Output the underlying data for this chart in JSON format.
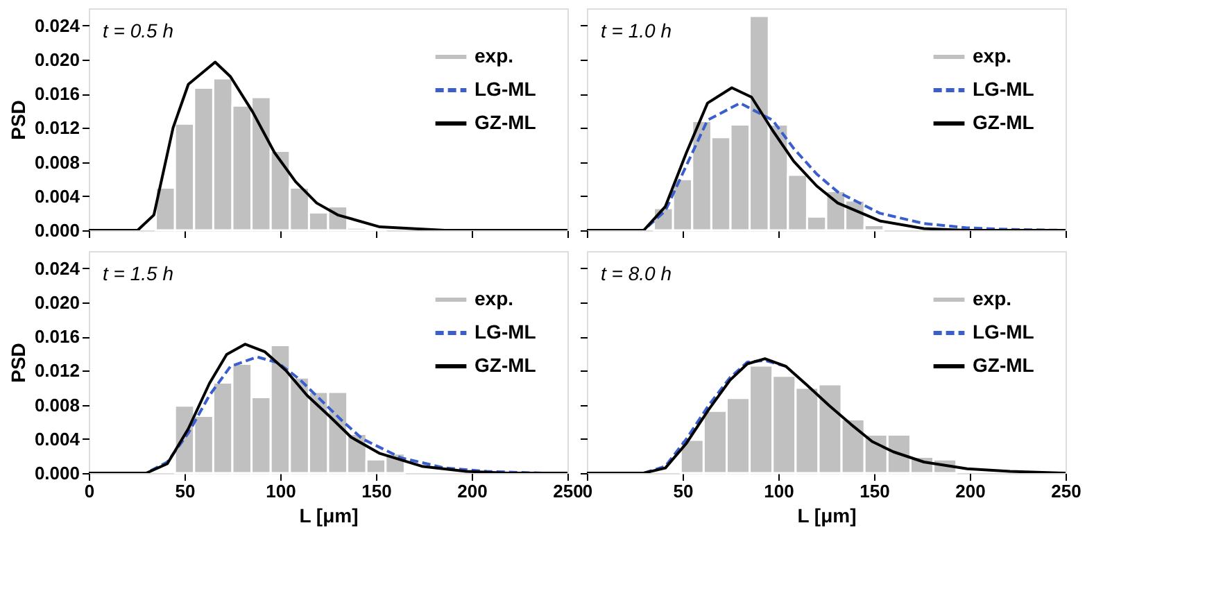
{
  "chart_data": [
    {
      "type": "histogram",
      "ylabel": "PSD",
      "annotations": [
        "t = 0.5 h"
      ],
      "xlim": [
        0,
        250
      ],
      "ylim": [
        0,
        0.026
      ],
      "xticks": [
        0,
        50,
        100,
        150,
        200,
        250
      ],
      "yticks": [
        {
          "value": 0,
          "label": "0.000"
        },
        {
          "value": 0.004,
          "label": "0.004"
        },
        {
          "value": 0.008,
          "label": "0.008"
        },
        {
          "value": 0.012,
          "label": "0.012"
        },
        {
          "value": 0.016,
          "label": "0.016"
        },
        {
          "value": 0.02,
          "label": "0.020"
        },
        {
          "value": 0.024,
          "label": "0.024"
        }
      ],
      "tick_labels": "y",
      "legend": "top right",
      "series": [
        {
          "name": "exp.",
          "color": "#c0c0c0",
          "bins": [
            35,
            45,
            55,
            65,
            75,
            85,
            95,
            105,
            115,
            125,
            135,
            145,
            155
          ],
          "values": [
            0.005,
            0.0125,
            0.0167,
            0.0178,
            0.0146,
            0.0156,
            0.0093,
            0.005,
            0.0021,
            0.0028,
            0.0003,
            0.0002
          ]
        },
        {
          "name": "LG-ML",
          "type": "line",
          "line_style": "dashed",
          "color": "#3a5fcd"
        },
        {
          "name": "GZ-ML",
          "type": "line",
          "line_style": "solid",
          "color": "#000000",
          "x": [
            0,
            25.5,
            34,
            44,
            52,
            66,
            74,
            85.5,
            97,
            108,
            119,
            130,
            152,
            186,
            250
          ],
          "values": [
            0,
            0,
            0.0018,
            0.012,
            0.0171,
            0.0197,
            0.018,
            0.0139,
            0.0091,
            0.0057,
            0.0032,
            0.0018,
            0.0004,
            0,
            0
          ]
        }
      ]
    },
    {
      "type": "histogram",
      "annotations": [
        "t = 1.0 h"
      ],
      "xlim": [
        0,
        250
      ],
      "ylim": [
        0,
        0.026
      ],
      "xticks": [
        0,
        50,
        100,
        150,
        200,
        250
      ],
      "yticks": [
        {
          "value": 0,
          "label": null
        },
        {
          "value": 0.004,
          "label": null
        },
        {
          "value": 0.008,
          "label": null
        },
        {
          "value": 0.012,
          "label": null
        },
        {
          "value": 0.016,
          "label": null
        },
        {
          "value": 0.02,
          "label": null
        },
        {
          "value": 0.024,
          "label": null
        }
      ],
      "tick_labels": false,
      "legend": "top right",
      "series": [
        {
          "name": "exp.",
          "color": "#c0c0c0",
          "bins": [
            35,
            45,
            55,
            65,
            75,
            85,
            95,
            105,
            115,
            125,
            135,
            145,
            155
          ],
          "values": [
            0.0026,
            0.006,
            0.0128,
            0.0109,
            0.0124,
            0.0251,
            0.0124,
            0.0065,
            0.0016,
            0.0046,
            0.0035,
            0.0006
          ]
        },
        {
          "name": "LG-ML",
          "type": "line",
          "line_style": "dashed",
          "color": "#3a5fcd",
          "x": [
            0,
            29.7,
            41,
            52,
            63,
            80,
            97,
            108,
            120,
            131,
            153,
            176,
            198,
            221,
            250
          ],
          "values": [
            0,
            0,
            0.0023,
            0.0076,
            0.0129,
            0.0149,
            0.0129,
            0.0096,
            0.0066,
            0.0045,
            0.002,
            0.0008,
            0.0003,
            0.0001,
            0
          ]
        },
        {
          "name": "GZ-ML",
          "type": "line",
          "line_style": "solid",
          "color": "#000000",
          "x": [
            0,
            29.7,
            41,
            52,
            63,
            75.7,
            86,
            97,
            108,
            120,
            131,
            153,
            176,
            198,
            250
          ],
          "values": [
            0,
            0,
            0.0028,
            0.0091,
            0.0149,
            0.0167,
            0.0156,
            0.0117,
            0.0081,
            0.0052,
            0.0032,
            0.0011,
            0.0002,
            0,
            0
          ]
        }
      ]
    },
    {
      "type": "histogram",
      "xlabel": "L [μm]",
      "ylabel": "PSD",
      "annotations": [
        "t = 1.5 h"
      ],
      "xlim": [
        0,
        250
      ],
      "ylim": [
        0,
        0.026
      ],
      "xticks": [
        0,
        50,
        100,
        150,
        200,
        250
      ],
      "yticks": [
        {
          "value": 0,
          "label": "0.000"
        },
        {
          "value": 0.004,
          "label": "0.004"
        },
        {
          "value": 0.008,
          "label": "0.008"
        },
        {
          "value": 0.012,
          "label": "0.012"
        },
        {
          "value": 0.016,
          "label": "0.016"
        },
        {
          "value": 0.02,
          "label": "0.020"
        },
        {
          "value": 0.024,
          "label": "0.024"
        }
      ],
      "legend": "top right",
      "series": [
        {
          "name": "exp.",
          "color": "#c0c0c0",
          "bins": [
            45,
            55,
            65,
            75,
            85,
            95,
            105,
            115,
            125,
            135,
            145,
            155,
            165
          ],
          "values": [
            0.0079,
            0.0067,
            0.0106,
            0.0128,
            0.0089,
            0.015,
            0.0112,
            0.0095,
            0.0095,
            0.0046,
            0.0016,
            0.0023
          ]
        },
        {
          "name": "LG-ML",
          "type": "line",
          "line_style": "dashed",
          "color": "#3a5fcd",
          "x": [
            0,
            30,
            41,
            52,
            63,
            74,
            88,
            99,
            110,
            121,
            132,
            143,
            163,
            186,
            208,
            237,
            250
          ],
          "values": [
            0,
            0,
            0.0013,
            0.0047,
            0.0091,
            0.0125,
            0.0136,
            0.0129,
            0.011,
            0.0086,
            0.0062,
            0.004,
            0.0018,
            0.0006,
            0.0002,
            0,
            0
          ]
        },
        {
          "name": "GZ-ML",
          "type": "line",
          "line_style": "solid",
          "color": "#000000",
          "x": [
            0,
            30,
            41,
            52,
            63,
            72,
            81.6,
            92,
            103,
            114,
            126,
            137,
            152,
            174,
            197,
            219,
            250
          ],
          "values": [
            0,
            0,
            0.0011,
            0.0052,
            0.0105,
            0.0139,
            0.0151,
            0.0142,
            0.012,
            0.0091,
            0.0066,
            0.0042,
            0.0023,
            0.0008,
            0.0002,
            0,
            0
          ]
        }
      ]
    },
    {
      "type": "histogram",
      "xlabel": "L [μm]",
      "annotations": [
        "t = 8.0 h"
      ],
      "xlim": [
        0,
        250
      ],
      "ylim": [
        0,
        0.026
      ],
      "xticks": [
        0,
        50,
        100,
        150,
        200,
        250
      ],
      "yticks": [
        {
          "value": 0,
          "label": null
        },
        {
          "value": 0.004,
          "label": null
        },
        {
          "value": 0.008,
          "label": null
        },
        {
          "value": 0.012,
          "label": null
        },
        {
          "value": 0.016,
          "label": null
        },
        {
          "value": 0.02,
          "label": null
        },
        {
          "value": 0.024,
          "label": null
        }
      ],
      "tick_labels": "x",
      "legend": "top right",
      "series": [
        {
          "name": "exp.",
          "color": "#c0c0c0",
          "bins": [
            49,
            61,
            73,
            85,
            97,
            109,
            121,
            133,
            145,
            157,
            169,
            181,
            193
          ],
          "values": [
            0.0039,
            0.0073,
            0.0088,
            0.0126,
            0.0114,
            0.01,
            0.0104,
            0.0063,
            0.0045,
            0.0045,
            0.0019,
            0.0016
          ]
        },
        {
          "name": "LG-ML",
          "type": "line",
          "line_style": "dashed",
          "color": "#3a5fcd",
          "x": [
            29.7,
            41,
            52,
            63.5,
            74.8,
            83.8,
            93,
            104
          ],
          "values": [
            0,
            0.0008,
            0.004,
            0.0079,
            0.0112,
            0.013,
            0.0132,
            0.0125
          ]
        },
        {
          "name": "GZ-ML",
          "type": "line",
          "line_style": "solid",
          "color": "#000000",
          "x": [
            0,
            29.7,
            41,
            52,
            63.5,
            74.8,
            83.8,
            93,
            104,
            115,
            126.6,
            138,
            149,
            160,
            176,
            198.6,
            221,
            250
          ],
          "values": [
            0,
            0,
            0.0006,
            0.0035,
            0.0074,
            0.0109,
            0.0128,
            0.0134,
            0.0125,
            0.0103,
            0.0079,
            0.0057,
            0.0037,
            0.0025,
            0.0013,
            0.0005,
            0.0002,
            0
          ]
        }
      ]
    }
  ]
}
